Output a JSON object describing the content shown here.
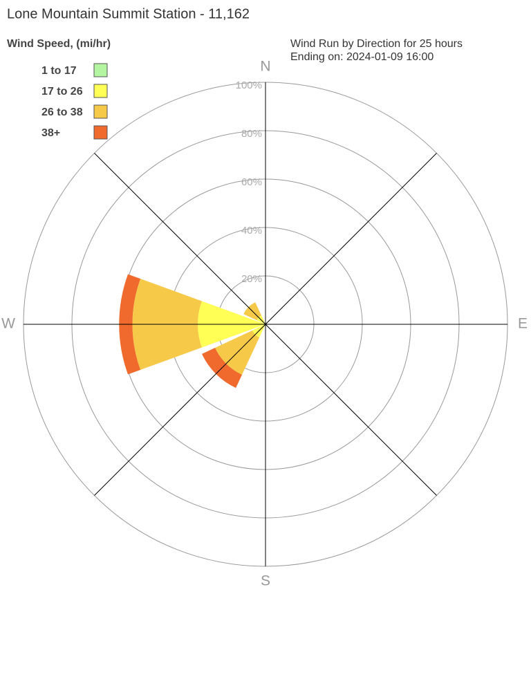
{
  "chart_data": {
    "type": "windrose",
    "title": "Lone Mountain Summit Station - 11,162",
    "legend_title": "Wind Speed, (mi/hr)",
    "subtitle": [
      "Wind Run by Direction for 25 hours",
      "Ending on: 2024-01-09 16:00"
    ],
    "categories": [
      "N",
      null,
      "E",
      null,
      "S",
      null,
      "W",
      null
    ],
    "series": [
      {
        "name": "1 to 17",
        "color": "#b3f5a0",
        "values": [
          0,
          0,
          0,
          0,
          0,
          0,
          0,
          0
        ]
      },
      {
        "name": "17 to 26",
        "color": "#ffff55",
        "values": [
          0,
          0,
          0,
          0,
          0,
          6,
          28,
          4
        ]
      },
      {
        "name": "26 to 38",
        "color": "#f7c948",
        "values": [
          0,
          0,
          0,
          0,
          0,
          17,
          27,
          6
        ]
      },
      {
        "name": "38+",
        "color": "#ef6a2c",
        "values": [
          0,
          0,
          0,
          0,
          0,
          6,
          5.5,
          0
        ]
      }
    ],
    "rlim": [
      0,
      100
    ],
    "rticks": [
      {
        "value": 20,
        "label": "20%"
      },
      {
        "value": 40,
        "label": "40%"
      },
      {
        "value": 60,
        "label": "60%"
      },
      {
        "value": 80,
        "label": "80%"
      },
      {
        "value": 100,
        "label": "100%"
      }
    ],
    "grid": true
  }
}
